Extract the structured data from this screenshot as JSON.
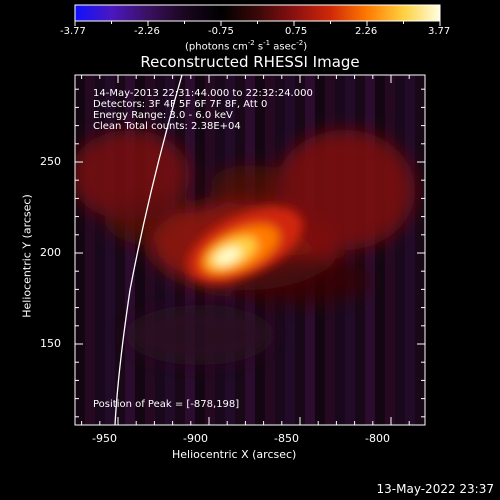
{
  "colorbar": {
    "tick_labels": [
      "-3.77",
      "-2.26",
      "-0.75",
      "0.75",
      "2.26",
      "3.77"
    ],
    "units_parts": [
      "(photons cm",
      "-2",
      " s",
      "-1",
      " asec",
      "-2",
      ")"
    ],
    "colors": [
      "#1010ff",
      "#4a18c0",
      "#3a1060",
      "#1a0620",
      "#000000",
      "#3a0808",
      "#8a1010",
      "#d02808",
      "#ff7a00",
      "#ffd040",
      "#ffffe0"
    ]
  },
  "plot": {
    "title": "Reconstructed RHESSI Image",
    "info_lines": [
      "14-May-2013 22:31:44.000 to 22:32:24.000",
      "Detectors: 3F 4F 5F 6F 7F 8F, Att 0",
      "Energy Range: 3.0 - 6.0 keV",
      "Clean    Total counts: 2.38E+04"
    ],
    "peak_text": "Position of Peak = [-878,198]",
    "x_axis": {
      "label": "Heliocentric X (arcsec)",
      "ticks": [
        "-950",
        "-900",
        "-850",
        "-800"
      ]
    },
    "y_axis": {
      "label": "Heliocentric Y (arcsec)",
      "ticks": [
        "250",
        "200",
        "150"
      ]
    }
  },
  "footer_timestamp": "13-May-2022 23:37"
}
